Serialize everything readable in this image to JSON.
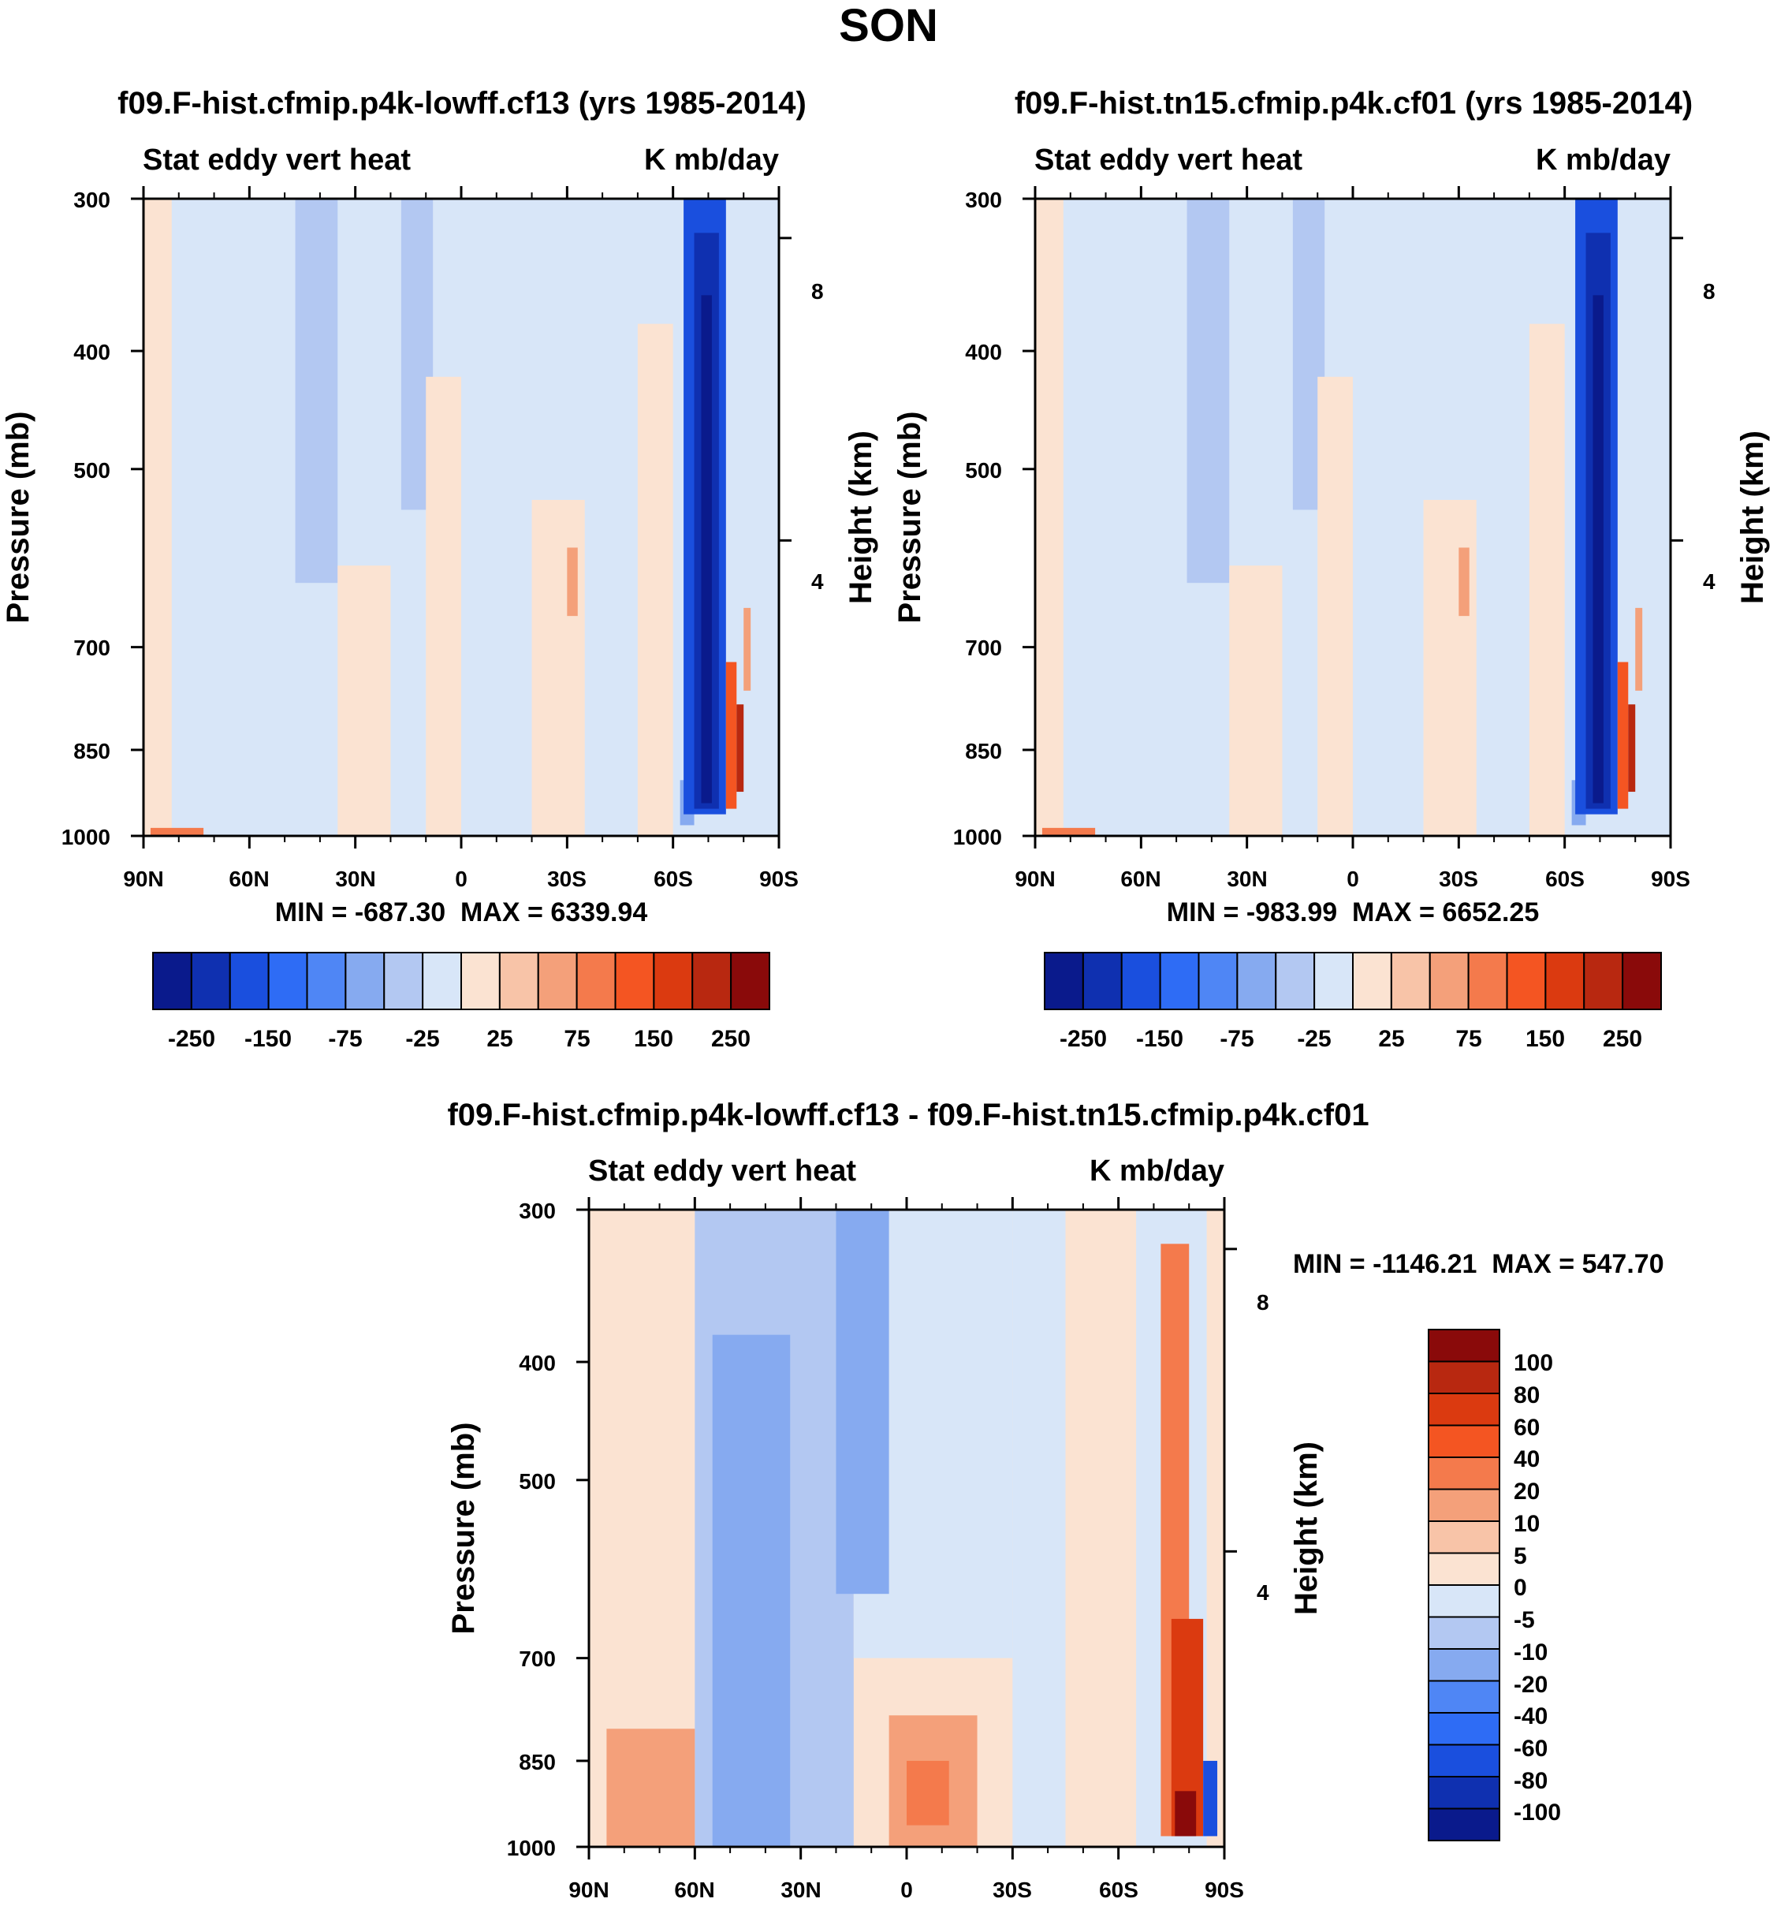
{
  "figure": {
    "title": "SON"
  },
  "colors": {
    "abs_scale": [
      "#0a1a8c",
      "#0f30b0",
      "#1a4fde",
      "#2e6cf5",
      "#4f86f5",
      "#86aaf0",
      "#b3c8f2",
      "#d8e6f8",
      "#fbe3d2",
      "#f8c4a8",
      "#f4a07a",
      "#f47a4c",
      "#f45522",
      "#db3a10",
      "#b82810",
      "#8a0a0a"
    ],
    "diff_scale": [
      "#0a1a8c",
      "#0f30b0",
      "#1a4fde",
      "#2e6cf5",
      "#4f86f5",
      "#86aaf0",
      "#b3c8f2",
      "#d8e6f8",
      "#fbe3d2",
      "#f8c4a8",
      "#f4a07a",
      "#f47a4c",
      "#f45522",
      "#db3a10",
      "#b82810",
      "#8a0a0a"
    ]
  },
  "chart_data": [
    {
      "type": "heatmap",
      "title": "f09.F-hist.cfmip.p4k-lowff.cf13 (yrs 1985-2014)",
      "left_label": "Stat eddy vert heat",
      "right_label": "K mb/day",
      "ylabel": "Pressure (mb)",
      "ylabel_right": "Height (km)",
      "xticks": [
        "90N",
        "60N",
        "30N",
        "0",
        "30S",
        "60S",
        "90S"
      ],
      "yticks": [
        "300",
        "400",
        "500",
        "700",
        "850",
        "1000"
      ],
      "yticks_right": [
        "8",
        "4"
      ],
      "stats": "MIN = -687.30  MAX = 6339.94",
      "colorbar_labels": [
        "-250",
        "-150",
        "-75",
        "-25",
        "25",
        "75",
        "150",
        "250"
      ],
      "xlim": [
        90,
        -90
      ],
      "ylim": [
        1000,
        300
      ]
    },
    {
      "type": "heatmap",
      "title": "f09.F-hist.tn15.cfmip.p4k.cf01 (yrs 1985-2014)",
      "left_label": "Stat eddy vert heat",
      "right_label": "K mb/day",
      "ylabel": "Pressure (mb)",
      "ylabel_right": "Height (km)",
      "xticks": [
        "90N",
        "60N",
        "30N",
        "0",
        "30S",
        "60S",
        "90S"
      ],
      "yticks": [
        "300",
        "400",
        "500",
        "700",
        "850",
        "1000"
      ],
      "yticks_right": [
        "8",
        "4"
      ],
      "stats": "MIN = -983.99  MAX = 6652.25",
      "colorbar_labels": [
        "-250",
        "-150",
        "-75",
        "-25",
        "25",
        "75",
        "150",
        "250"
      ],
      "xlim": [
        90,
        -90
      ],
      "ylim": [
        1000,
        300
      ]
    },
    {
      "type": "heatmap",
      "title": "f09.F-hist.cfmip.p4k-lowff.cf13 - f09.F-hist.tn15.cfmip.p4k.cf01",
      "left_label": "Stat eddy vert heat",
      "right_label": "K mb/day",
      "ylabel": "Pressure (mb)",
      "ylabel_right": "Height (km)",
      "xticks": [
        "90N",
        "60N",
        "30N",
        "0",
        "30S",
        "60S",
        "90S"
      ],
      "yticks": [
        "300",
        "400",
        "500",
        "700",
        "850",
        "1000"
      ],
      "yticks_right": [
        "8",
        "4"
      ],
      "stats": "MIN = -1146.21  MAX = 547.70",
      "colorbar_labels": [
        "100",
        "80",
        "60",
        "40",
        "20",
        "10",
        "5",
        "0",
        "-5",
        "-10",
        "-20",
        "-40",
        "-60",
        "-80",
        "-100"
      ],
      "xlim": [
        90,
        -90
      ],
      "ylim": [
        1000,
        300
      ]
    }
  ]
}
